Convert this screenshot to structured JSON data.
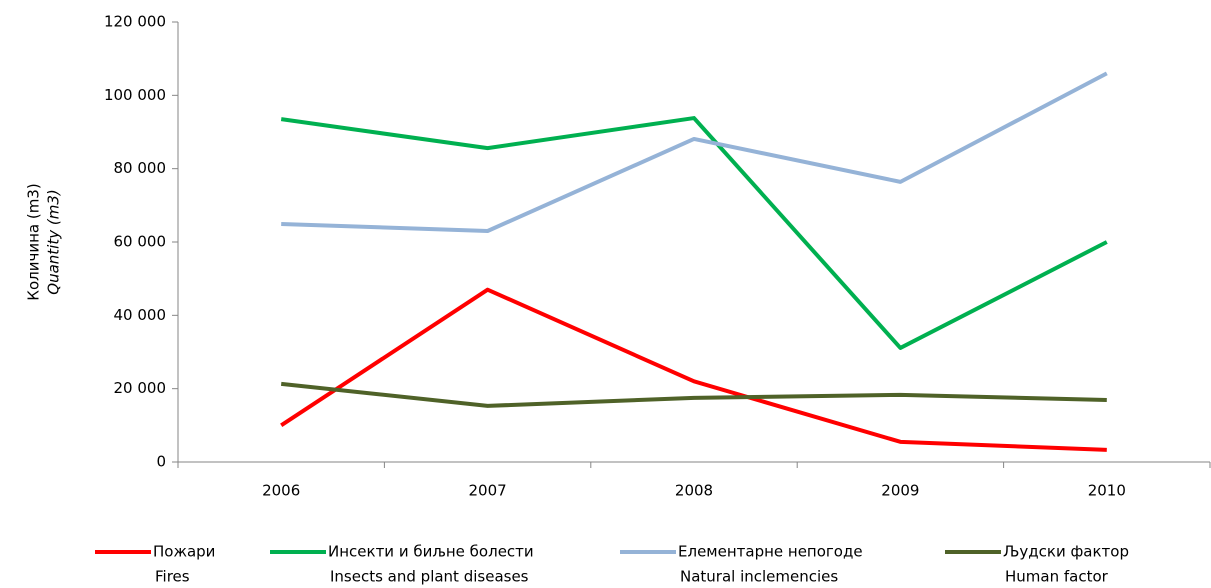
{
  "chart_data": {
    "type": "line",
    "ylabel": "Количина (m3)",
    "ylabel_en": "Quantity (m3)",
    "categories": [
      "2006",
      "2007",
      "2008",
      "2009",
      "2010"
    ],
    "series": [
      {
        "name": "Пожари",
        "name_en": "Fires",
        "color": "#ff0000",
        "values": [
          10000,
          47000,
          22000,
          5500,
          3300
        ]
      },
      {
        "name": "Инсекти и биљне болести",
        "name_en": "Insects and plant diseases",
        "color": "#00b050",
        "values": [
          93500,
          85600,
          93800,
          31100,
          60000
        ]
      },
      {
        "name": "Елементарне непогоде",
        "name_en": "Natural inclemencies",
        "color": "#95b3d7",
        "values": [
          64900,
          63000,
          88100,
          76400,
          106000
        ]
      },
      {
        "name": "Људски фактор",
        "name_en": "Human factor",
        "color": "#4f6228",
        "values": [
          21300,
          15300,
          17500,
          18300,
          16900
        ]
      }
    ],
    "ylim": [
      0,
      120000
    ],
    "yticks": [
      0,
      {
        "value": 20000,
        "label": "20 000"
      },
      {
        "value": 40000,
        "label": "40 000"
      },
      {
        "value": 60000,
        "label": "60 000"
      },
      {
        "value": 80000,
        "label": "80 000"
      },
      {
        "value": 100000,
        "label": "100 000"
      },
      {
        "value": 120000,
        "label": "120 000"
      }
    ],
    "grid": false,
    "legend": "bottom"
  }
}
